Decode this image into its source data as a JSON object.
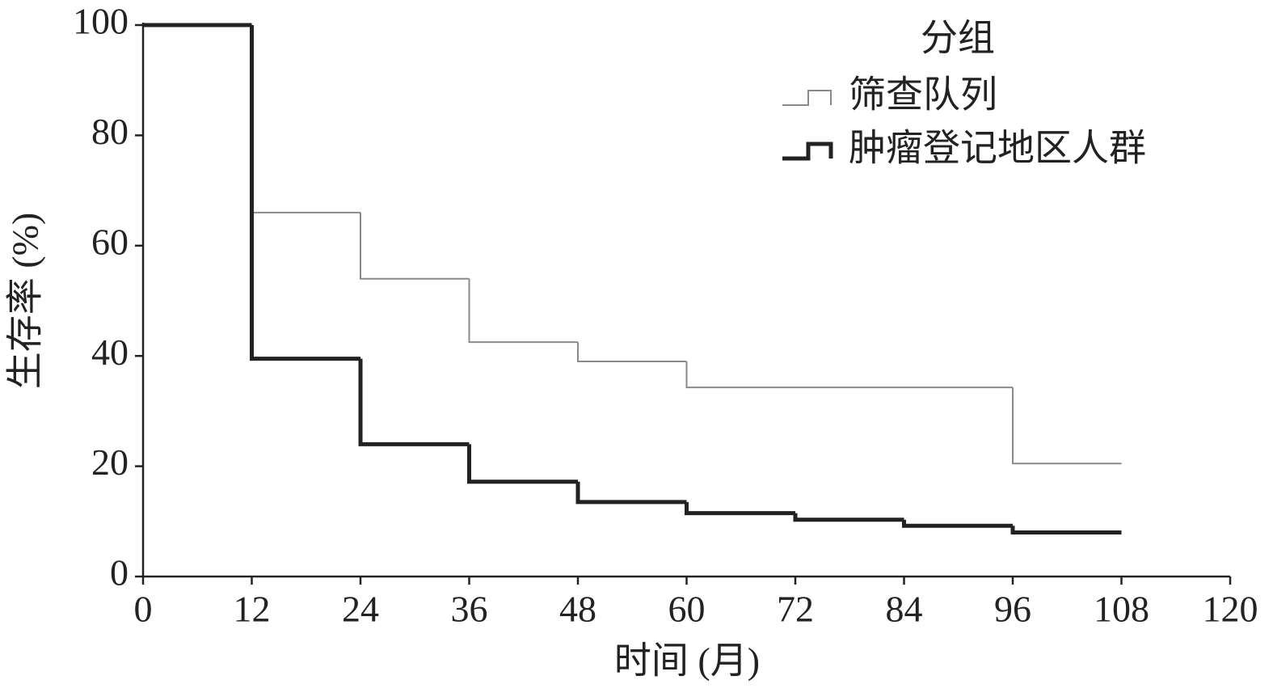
{
  "chart_data": {
    "type": "step",
    "x_label": "时间 (月)",
    "y_label": "生存率 (%)",
    "x": [
      0,
      12,
      24,
      36,
      48,
      60,
      72,
      84,
      96,
      108
    ],
    "series": [
      {
        "name": "筛查队列",
        "color": "#8a8a8a",
        "width": 2,
        "values": [
          100,
          66,
          54,
          42.5,
          39,
          34.3,
          34.3,
          34.3,
          20.5,
          20.5
        ]
      },
      {
        "name": "肿瘤登记地区人群",
        "color": "#222222",
        "width": 5,
        "values": [
          100,
          39.5,
          24,
          17.2,
          13.5,
          11.5,
          10.3,
          9.2,
          8,
          8
        ]
      }
    ],
    "xlim": [
      0,
      120
    ],
    "xticks": [
      0,
      12,
      24,
      36,
      48,
      60,
      72,
      84,
      96,
      108,
      120
    ],
    "ylim": [
      0,
      100
    ],
    "yticks": [
      0,
      20,
      40,
      60,
      80,
      100
    ],
    "grid": false,
    "legend": {
      "title": "分组",
      "position": "upper-right"
    }
  }
}
